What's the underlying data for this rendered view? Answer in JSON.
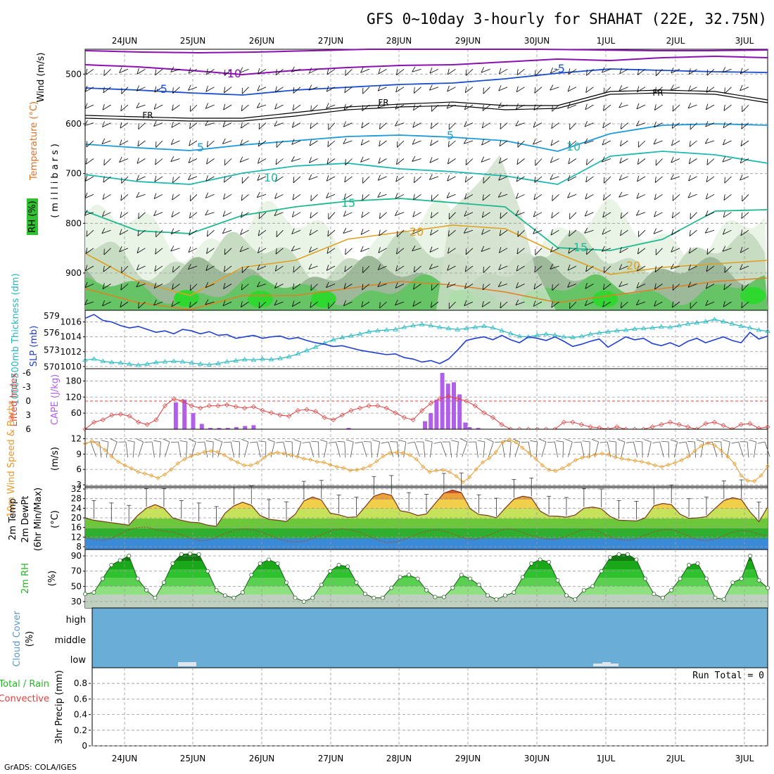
{
  "title": "GFS 0~10day 3-hourly for SHAHAT (22E, 32.75N)",
  "credit": "GrADS: COLA/IGES",
  "dates": [
    "24JUN",
    "25JUN",
    "26JUN",
    "27JUN",
    "28JUN",
    "29JUN",
    "30JUN",
    "1JUL",
    "2JUL",
    "3JUL"
  ],
  "colors": {
    "slp": "#1f3fd0",
    "thickness": "#22b8c0",
    "lifted": "#e04040",
    "cape": "#b060e8",
    "wind10m": "#e89a2a",
    "temp_fill": "#f2c84a",
    "rh_fill": "#22b822",
    "cloud": "#6aaed8",
    "temp_purple": "#8a10b0",
    "temp_blue": "#1c4fd0",
    "temp_cyan": "#1f9ad8",
    "temp_teal": "#20b8b0",
    "temp_green": "#20b890",
    "temp_orange": "#e0a020"
  },
  "panels": {
    "upper": {
      "ylabel_wind": "Wind (m/s)",
      "ylabel_temp": "Temperature (°C)",
      "ylabel_rh": "RH (%)",
      "ylabel_p": "(millibars)",
      "p_ticks": [
        "500",
        "600",
        "700",
        "800",
        "900"
      ],
      "contour_labels": [
        "-10",
        "-5",
        "-5",
        "FR",
        "FR",
        "FR",
        "5",
        "5",
        "10",
        "10",
        "15",
        "15",
        "20",
        "20"
      ]
    },
    "slp": {
      "ylabel_thick": "1000-500mb Thickness (dm)",
      "ylabel_slp": "SLP (mb)",
      "thick_ticks": [
        "579",
        "576",
        "573",
        "570"
      ],
      "slp_ticks": [
        "1016",
        "1014",
        "1012",
        "1010"
      ]
    },
    "cape": {
      "ylabel_li": "Lifted Index",
      "ylabel_cape": "CAPE (J/kg)",
      "li_ticks": [
        "-6",
        "-3",
        "0",
        "3",
        "6"
      ],
      "cape_ticks": [
        "180",
        "120",
        "60"
      ]
    },
    "wind": {
      "ylabel": "10m Wind Speed & Barbs",
      "unit": "(m/s)",
      "ticks": [
        "12",
        "9",
        "6",
        "3"
      ]
    },
    "temp": {
      "ylabel1": "2m Temp",
      "ylabel2": "2m DewPt",
      "ylabel3": "(6hr Min/Max)",
      "unit": "(°C)",
      "ticks": [
        "32",
        "28",
        "24",
        "20",
        "16",
        "12",
        "8"
      ]
    },
    "rh": {
      "ylabel": "2m RH",
      "unit": "(%)",
      "ticks": [
        "90",
        "70",
        "50",
        "30"
      ]
    },
    "cloud": {
      "ylabel": "Cloud Cover",
      "unit": "(%)",
      "levels": [
        "high",
        "middle",
        "low"
      ]
    },
    "precip": {
      "ylabel1": "Total / Rain",
      "ylabel2": "Convective",
      "ylabel3": "3hr Precip (mm)",
      "ticks": [
        "0.8",
        "0.6",
        "0.4",
        "0.2",
        "0"
      ],
      "run_total": "Run Total = 0"
    }
  },
  "chart_data": {
    "type": "line",
    "x_step_hours": 3,
    "slp_mb": [
      1016.5,
      1017,
      1016.2,
      1016,
      1015.5,
      1015.2,
      1015.4,
      1015,
      1014.6,
      1014.8,
      1014.4,
      1015,
      1014.8,
      1014.4,
      1014.7,
      1014.2,
      1014.3,
      1013.8,
      1014,
      1014.2,
      1013.8,
      1014,
      1014.1,
      1013.7,
      1013.9,
      1013.5,
      1013.2,
      1013,
      1012.7,
      1012.8,
      1012.5,
      1012.2,
      1012,
      1011.8,
      1011.6,
      1011.7,
      1011.2,
      1011,
      1010.6,
      1010.8,
      1010.4,
      1011,
      1012.2,
      1013.5,
      1013.8,
      1014,
      1013.6,
      1014.2,
      1013.6,
      1013.2,
      1014,
      1013.8,
      1013.5,
      1014,
      1013.4,
      1012.7,
      1013,
      1013.4,
      1013.7,
      1012.6,
      1013.3,
      1014,
      1013.6,
      1013.8,
      1013.1,
      1012.8,
      1013.2,
      1012.7,
      1013.4,
      1013.8,
      1013.2,
      1013.6,
      1014,
      1013.5,
      1013.2,
      1014.6,
      1013.7,
      1014.1
    ],
    "thickness_dm": [
      571.2,
      571.4,
      571.0,
      570.8,
      570.7,
      570.5,
      570.3,
      570.5,
      570.8,
      570.9,
      571.0,
      570.9,
      570.7,
      570.5,
      570.4,
      570.6,
      570.9,
      571.1,
      571.3,
      571.2,
      571.4,
      571.3,
      571.5,
      571.8,
      572.3,
      572.9,
      573.5,
      574.2,
      574.8,
      575.2,
      575.5,
      575.8,
      576.2,
      576.4,
      576.5,
      576.6,
      577.0,
      577.3,
      577.5,
      577.3,
      577.0,
      576.8,
      576.6,
      576.8,
      577.0,
      577.2,
      576.9,
      576.4,
      575.9,
      575.4,
      575.3,
      575.6,
      575.8,
      575.6,
      575.3,
      575.2,
      575.4,
      575.8,
      576.0,
      576.2,
      576.4,
      576.5,
      576.7,
      576.8,
      576.9,
      577.1,
      577.0,
      577.3,
      577.6,
      577.8,
      578.0,
      578.4,
      578.0,
      577.6,
      577.2,
      576.9,
      576.5,
      576.3
    ],
    "lifted_index": [
      6,
      4.5,
      4,
      3,
      2.8,
      3.2,
      4.5,
      5,
      4,
      1,
      -0.5,
      0,
      1,
      1.5,
      1,
      1,
      0.8,
      1.2,
      1.5,
      1.2,
      2,
      2.5,
      3,
      3.2,
      2,
      1.8,
      2.2,
      3.5,
      4,
      3,
      2,
      1.5,
      1,
      1,
      1.5,
      2.5,
      3.5,
      4,
      2,
      0.5,
      -0.5,
      -1,
      -0.5,
      0,
      1,
      2.5,
      3.5,
      5,
      6,
      7,
      7.5,
      7.8,
      8,
      6,
      4.5,
      4.5,
      5,
      5.5,
      5.7,
      6,
      5.5,
      6,
      6.2,
      6,
      5.5,
      5,
      4.5,
      5,
      5.5,
      6,
      4.8,
      4.5,
      5.2,
      6,
      5,
      4.8,
      5.8,
      5.5
    ],
    "cape_jkg": [
      0,
      0,
      0,
      0,
      0,
      0,
      0,
      0,
      0,
      100,
      110,
      60,
      20,
      5,
      5,
      5,
      8,
      12,
      15,
      0,
      0,
      0,
      0,
      0,
      0,
      0,
      0,
      0,
      0,
      5,
      0,
      0,
      0,
      0,
      0,
      0,
      0,
      0,
      0,
      0,
      0,
      0,
      0,
      8,
      5,
      0,
      0,
      0,
      0,
      0,
      0,
      0,
      0,
      0,
      0,
      0,
      0,
      0,
      0,
      0,
      0,
      0,
      0,
      0,
      0,
      0,
      0,
      0,
      0,
      0,
      0,
      0,
      0,
      0,
      0,
      0,
      0,
      0
    ],
    "cape_peak_block": [
      30,
      60,
      110,
      210,
      170,
      175,
      130,
      25
    ],
    "wind10m_ms": [
      11,
      11.5,
      10.8,
      9.8,
      8.5,
      7.5,
      6.8,
      6.2,
      5.5,
      5.2,
      4.8,
      4.3,
      5,
      6,
      7.2,
      8,
      8.6,
      9,
      9.4,
      9.6,
      9.4,
      8.8,
      8,
      7.4,
      6.8,
      6.8,
      7.3,
      8.3,
      9.1,
      9.3,
      9.1,
      8.8,
      8.5,
      8.1,
      7.9,
      7.5,
      7.4,
      6.9,
      6.5,
      6.3,
      5.8,
      5.9,
      6.2,
      6.7,
      7.6,
      8.6,
      9.2,
      9.3,
      9.2,
      8.8,
      8.0,
      6.5,
      5.5,
      5.8,
      5.9,
      5.5,
      4.7,
      3.5,
      4.5,
      6,
      7.4,
      8.2,
      9.4,
      11.3,
      11.8,
      11.3,
      10.2,
      9.2,
      8.1,
      6.8,
      5.9,
      5.7,
      6.2,
      6.9,
      7.8,
      8.3,
      8.5,
      8.9,
      9.1,
      8.9,
      8.4,
      8.1,
      7.9,
      7.7,
      7.5,
      7.2,
      6.8,
      6.5,
      6.9,
      7.3,
      7.8,
      8.5,
      9.6,
      10.6,
      11.1,
      10.7,
      9.7,
      8.5,
      7.1,
      4.8,
      3.8,
      3.7,
      4.8,
      6.6
    ],
    "temp2m_c": [
      20,
      19,
      18.5,
      18,
      17.5,
      17,
      21,
      24,
      25.5,
      24,
      20,
      19,
      18.2,
      18,
      17,
      16.5,
      22,
      25,
      26.5,
      25.2,
      21,
      19.4,
      19,
      18.5,
      21.5,
      27,
      28.7,
      27.4,
      22,
      21.3,
      20.2,
      20.4,
      24.6,
      29,
      30.2,
      29.4,
      23,
      22.3,
      21,
      21.6,
      26,
      30.3,
      31.6,
      30.5,
      23.8,
      21.4,
      21,
      20,
      24,
      27.8,
      29,
      28.4,
      22.8,
      20.8,
      20.7,
      20.3,
      21.2,
      24,
      24.5,
      23.8,
      20.6,
      19,
      18.9,
      18.7,
      20,
      25,
      26,
      25.5,
      21.5,
      19.8,
      20,
      20.5,
      24,
      27.2,
      28.4,
      27.6,
      22.5,
      18.4,
      24.5
    ],
    "dewpt2m_c": [
      12,
      11,
      10.6,
      11.5,
      13.4,
      15.2,
      16,
      16.2,
      15,
      14.5,
      14,
      12.8,
      11.5,
      10.5,
      10.8,
      12.3,
      13.8,
      15,
      15.5,
      15,
      14,
      12.5,
      11,
      10.2,
      10,
      10.5,
      12,
      13.5,
      15,
      15.5,
      15,
      14,
      12.5,
      10.8,
      9.8,
      10,
      11,
      12.6,
      14,
      14.8,
      15,
      14,
      12.6,
      11.4,
      11,
      12,
      13.5,
      15,
      15.5,
      14.5,
      13,
      12,
      11.2,
      11,
      12,
      13.5,
      15,
      15.3,
      14.2,
      12.5,
      11.2,
      10.6,
      11,
      12.5,
      14,
      15,
      15.2,
      14.2,
      12.6,
      11,
      10.5,
      11,
      12.5,
      14,
      14.8,
      14.5,
      13.2,
      12.5
    ],
    "rh2m_pct": [
      40,
      42,
      60,
      78,
      84,
      90,
      60,
      45,
      35,
      55,
      80,
      92,
      93,
      92,
      70,
      45,
      38,
      35,
      42,
      65,
      80,
      85,
      80,
      55,
      35,
      30,
      35,
      52,
      70,
      78,
      76,
      55,
      40,
      35,
      35,
      48,
      62,
      65,
      60,
      45,
      36,
      36,
      48,
      65,
      60,
      52,
      38,
      33,
      38,
      42,
      62,
      80,
      85,
      82,
      58,
      38,
      33,
      45,
      50,
      70,
      88,
      92,
      92,
      85,
      60,
      40,
      35,
      45,
      60,
      78,
      80,
      60,
      35,
      33,
      55,
      60,
      90,
      58,
      48
    ],
    "cloud_low_bars": [
      {
        "day": "25JUN",
        "value": "low"
      },
      {
        "day": "1JUL",
        "value": "low"
      }
    ],
    "precip_mm": 0
  }
}
